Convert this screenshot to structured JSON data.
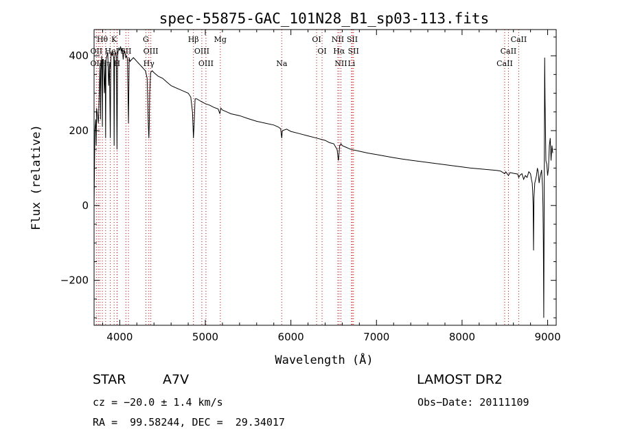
{
  "chart_data": {
    "type": "line",
    "title": "spec-55875-GAC_101N28_B1_sp03-113.fits",
    "xlabel": "Wavelength (Å)",
    "ylabel": "Flux (relative)",
    "xlim": [
      3700,
      9100
    ],
    "ylim": [
      -320,
      470
    ],
    "x_ticks": [
      4000,
      5000,
      6000,
      7000,
      8000,
      9000
    ],
    "y_ticks": [
      -200,
      0,
      200,
      400
    ],
    "x_tick_labels": [
      "4000",
      "5000",
      "6000",
      "7000",
      "8000",
      "9000"
    ],
    "y_tick_labels": [
      "−200",
      "0",
      "200",
      "400"
    ],
    "grid": false,
    "series": [
      {
        "x": [
          3700,
          3710,
          3720,
          3725,
          3730,
          3740,
          3750,
          3760,
          3770,
          3775,
          3780,
          3790,
          3797,
          3800,
          3810,
          3820,
          3830,
          3835,
          3840,
          3850,
          3860,
          3870,
          3880,
          3889,
          3895,
          3900,
          3910,
          3920,
          3930,
          3934,
          3940,
          3950,
          3960,
          3968,
          3975,
          3980,
          3990,
          4000,
          4010,
          4020,
          4030,
          4040,
          4050,
          4060,
          4070,
          4080,
          4090,
          4102,
          4110,
          4120,
          4140,
          4160,
          4180,
          4200,
          4220,
          4240,
          4260,
          4280,
          4300,
          4320,
          4330,
          4335,
          4340,
          4345,
          4350,
          4360,
          4380,
          4400,
          4450,
          4500,
          4550,
          4600,
          4650,
          4700,
          4750,
          4800,
          4830,
          4850,
          4861,
          4870,
          4880,
          4900,
          4950,
          5000,
          5050,
          5100,
          5150,
          5170,
          5180,
          5190,
          5200,
          5250,
          5300,
          5400,
          5500,
          5600,
          5700,
          5800,
          5850,
          5880,
          5893,
          5900,
          5950,
          6000,
          6100,
          6200,
          6300,
          6400,
          6450,
          6500,
          6540,
          6555,
          6563,
          6570,
          6585,
          6600,
          6650,
          6700,
          6800,
          6900,
          7000,
          7100,
          7200,
          7300,
          7400,
          7500,
          7600,
          7700,
          7800,
          7900,
          8000,
          8100,
          8200,
          8300,
          8400,
          8450,
          8498,
          8510,
          8542,
          8560,
          8600,
          8650,
          8662,
          8680,
          8700,
          8720,
          8740,
          8760,
          8780,
          8800,
          8810,
          8820,
          8825,
          8830,
          8835,
          8840,
          8850,
          8860,
          8870,
          8880,
          8890,
          8900,
          8910,
          8920,
          8930,
          8940,
          8945,
          8950,
          8955,
          8960,
          8965,
          8970,
          8980,
          8990,
          9000,
          9010,
          9020,
          9030,
          9040,
          9050,
          9060
        ],
        "values": [
          0,
          200,
          230,
          160,
          260,
          240,
          220,
          300,
          380,
          230,
          360,
          400,
          210,
          390,
          390,
          300,
          380,
          180,
          390,
          400,
          410,
          320,
          380,
          180,
          380,
          410,
          400,
          410,
          390,
          160,
          395,
          410,
          400,
          150,
          400,
          410,
          420,
          415,
          425,
          410,
          420,
          390,
          415,
          410,
          395,
          400,
          390,
          220,
          395,
          385,
          390,
          395,
          390,
          385,
          380,
          375,
          370,
          365,
          360,
          340,
          250,
          210,
          180,
          220,
          300,
          355,
          360,
          355,
          345,
          340,
          330,
          320,
          315,
          310,
          305,
          300,
          290,
          250,
          180,
          220,
          285,
          285,
          278,
          272,
          268,
          262,
          258,
          245,
          260,
          258,
          255,
          250,
          245,
          240,
          232,
          225,
          220,
          215,
          210,
          205,
          180,
          200,
          204,
          198,
          192,
          186,
          180,
          174,
          168,
          165,
          150,
          120,
          140,
          160,
          165,
          160,
          155,
          150,
          145,
          140,
          136,
          132,
          128,
          124,
          121,
          118,
          115,
          112,
          109,
          106,
          103,
          100,
          98,
          96,
          94,
          92,
          85,
          90,
          80,
          88,
          86,
          84,
          75,
          82,
          85,
          70,
          80,
          75,
          90,
          85,
          70,
          60,
          40,
          0,
          -120,
          20,
          60,
          70,
          80,
          100,
          90,
          60,
          75,
          85,
          95,
          50,
          0,
          -100,
          -300,
          50,
          395,
          280,
          120,
          110,
          80,
          100,
          160,
          180,
          120,
          160,
          140
        ]
      }
    ],
    "lines": [
      {
        "label": "Hθ",
        "x": 3797,
        "row": 0
      },
      {
        "label": "K",
        "x": 3934,
        "row": 0
      },
      {
        "label": "G",
        "x": 4305,
        "row": 0
      },
      {
        "label": "Hβ",
        "x": 4861,
        "row": 0
      },
      {
        "label": "Mg",
        "x": 5175,
        "row": 0
      },
      {
        "label": "OI",
        "x": 6300,
        "row": 0
      },
      {
        "label": "NII",
        "x": 6548,
        "row": 0
      },
      {
        "label": "SII",
        "x": 6717,
        "row": 0
      },
      {
        "label": "CaII",
        "x": 8662,
        "row": 0
      },
      {
        "label": "OII",
        "x": 3727,
        "row": 1
      },
      {
        "label": "He",
        "x": 3889,
        "row": 1
      },
      {
        "label": "I",
        "x": 3970,
        "row": 1
      },
      {
        "label": "SII",
        "x": 4072,
        "row": 1
      },
      {
        "label": "OIII",
        "x": 4363,
        "row": 1
      },
      {
        "label": "OIII",
        "x": 4959,
        "row": 1
      },
      {
        "label": "OI",
        "x": 6364,
        "row": 1
      },
      {
        "label": "Hα",
        "x": 6563,
        "row": 1
      },
      {
        "label": "SII",
        "x": 6731,
        "row": 1
      },
      {
        "label": "CaII",
        "x": 8542,
        "row": 1
      },
      {
        "label": "OII",
        "x": 3727,
        "row": 2
      },
      {
        "label": "Hη",
        "x": 3835,
        "row": 2
      },
      {
        "label": "H",
        "x": 3968,
        "row": 2
      },
      {
        "label": "Hγ",
        "x": 4340,
        "row": 2
      },
      {
        "label": "OIII",
        "x": 5007,
        "row": 2
      },
      {
        "label": "Na",
        "x": 5893,
        "row": 2
      },
      {
        "label": "NII",
        "x": 6584,
        "row": 2
      },
      {
        "label": "Li",
        "x": 6708,
        "row": 2
      },
      {
        "label": "CaII",
        "x": 8498,
        "row": 2
      }
    ],
    "marker_x": [
      3727,
      3750,
      3770,
      3797,
      3835,
      3889,
      3934,
      3968,
      3970,
      4072,
      4102,
      4305,
      4340,
      4363,
      4861,
      4959,
      5007,
      5175,
      5893,
      6300,
      6364,
      6548,
      6563,
      6584,
      6708,
      6717,
      6731,
      8498,
      8542,
      8662
    ]
  },
  "info": {
    "object_class": "STAR",
    "subclass": "A7V",
    "survey": "LAMOST DR2",
    "redshift": "cz = −20.0 ± 1.4 km/s",
    "obs_date": "Obs−Date: 20111109",
    "coords": "RA =  99.58244, DEC =  29.34017"
  },
  "colors": {
    "axes": "#000000",
    "spectrum": "#000000",
    "line_markers": "#c00000",
    "background": "#ffffff"
  }
}
